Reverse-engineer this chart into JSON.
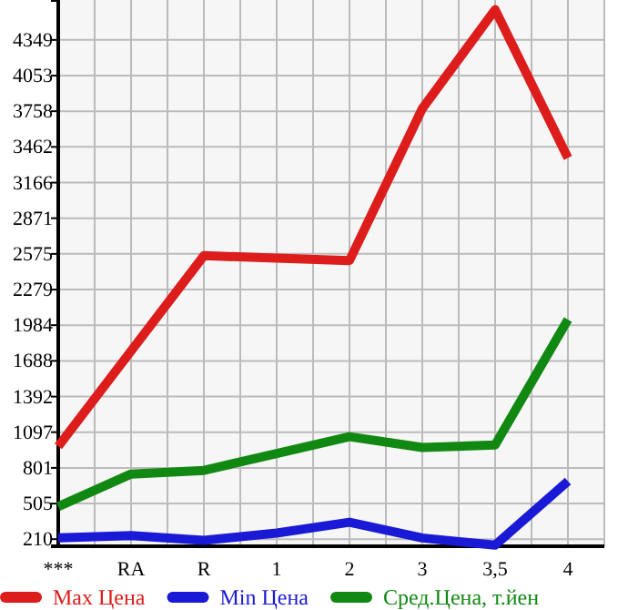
{
  "chart_data": {
    "type": "line",
    "categories": [
      "***",
      "RA",
      "R",
      "1",
      "2",
      "3",
      "3,5",
      "4"
    ],
    "series": [
      {
        "name": "Max Цена",
        "color": "#dd1c1c",
        "values": [
          980,
          1770,
          2560,
          2540,
          2520,
          3780,
          4600,
          3370
        ]
      },
      {
        "name": "Min Цена",
        "color": "#1a1ad6",
        "values": [
          220,
          240,
          200,
          260,
          350,
          220,
          160,
          690
        ]
      },
      {
        "name": "Сред.Цена, т.йен",
        "color": "#118811",
        "values": [
          480,
          750,
          780,
          920,
          1060,
          970,
          990,
          2030
        ]
      }
    ],
    "ylim": [
      151,
      4680
    ],
    "yticks": [
      210,
      505,
      801,
      1097,
      1392,
      1688,
      1984,
      2279,
      2575,
      2871,
      3166,
      3462,
      3758,
      4053,
      4349
    ],
    "grid": true,
    "legend": "bottom",
    "marker": "none",
    "line_style": "solid"
  }
}
